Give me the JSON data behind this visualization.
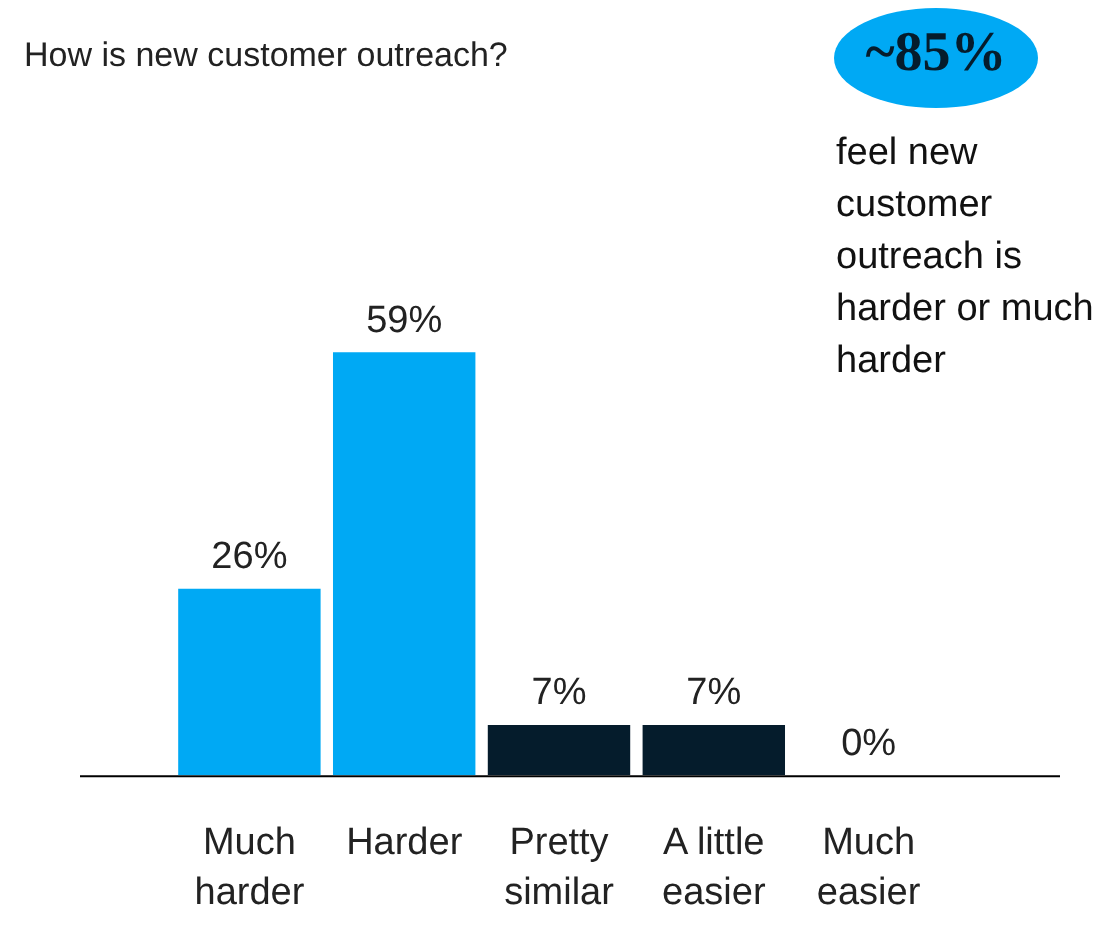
{
  "chart_data": {
    "type": "bar",
    "title": "How is new customer outreach?",
    "categories": [
      "Much harder",
      "Harder",
      "Pretty similar",
      "A little easier",
      "Much easier"
    ],
    "values": [
      26,
      59,
      7,
      7,
      0
    ],
    "colors": [
      "#00a9f4",
      "#00a9f4",
      "#051c2c",
      "#051c2c",
      "#051c2c"
    ],
    "value_labels": [
      "26%",
      "59%",
      "7%",
      "7%",
      "0%"
    ],
    "annotations": [
      "~85%",
      "feel new customer outreach is harder or much harder"
    ]
  }
}
